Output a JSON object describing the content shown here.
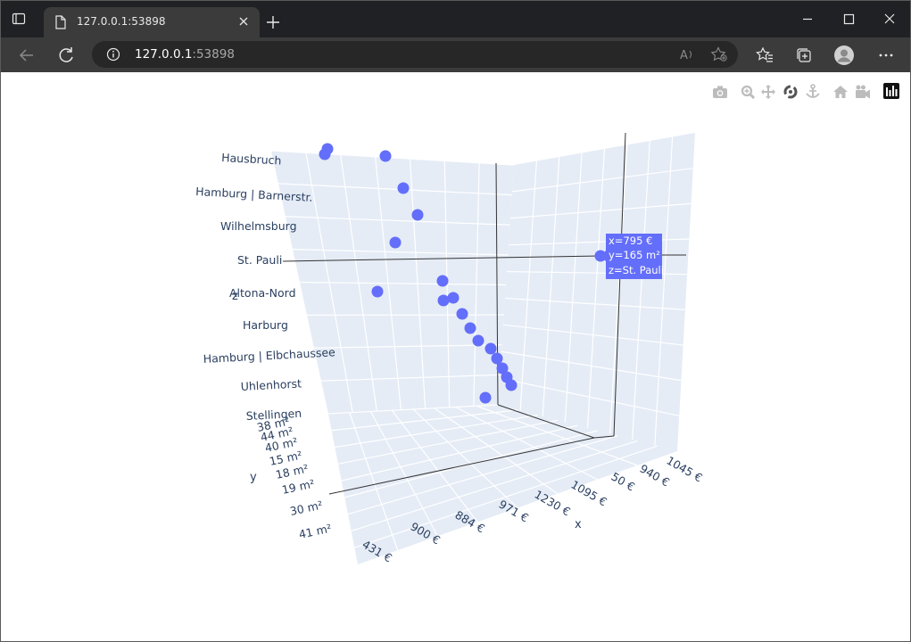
{
  "browser": {
    "tab_title": "127.0.0.1:53898",
    "url_host": "127.0.0.1",
    "url_port": ":53898"
  },
  "modebar": {
    "icons": [
      "camera-icon",
      "zoom-icon",
      "pan-icon",
      "orbit-rotation-icon",
      "turntable-rotation-icon",
      "reset-camera-home-icon",
      "reset-camera-last-save-icon",
      "plotly-logo-icon"
    ]
  },
  "chart_data": {
    "type": "scatter3d",
    "marker_color": "#636efa",
    "scene_bg": "#e5ecf6",
    "axes": {
      "x": {
        "title": "x",
        "ticks": [
          "431 €",
          "900 €",
          "884 €",
          "971 €",
          "1230 €",
          "1095 €",
          "50 €",
          "940 €",
          "1045 €"
        ]
      },
      "y": {
        "title": "y",
        "ticks": [
          "41 m²",
          "30 m²",
          "19 m²",
          "18 m²",
          "15 m²",
          "40 m²",
          "44 m²",
          "38 m²"
        ]
      },
      "z": {
        "title": "z",
        "ticks": [
          "Stellingen",
          "Uhlenhorst",
          "Hamburg | Elbchaussee",
          "Harburg",
          "Altona-Nord",
          "St. Pauli",
          "Wilhelmsburg",
          "Hamburg | Barnerstr.",
          "Hausbruch"
        ]
      }
    },
    "hover": {
      "x": "795 €",
      "y": "165 m²",
      "z": "St. Pauli"
    }
  },
  "hover_lines": [
    "x=795 €",
    "y=165 m²",
    "z=St. Pauli"
  ]
}
